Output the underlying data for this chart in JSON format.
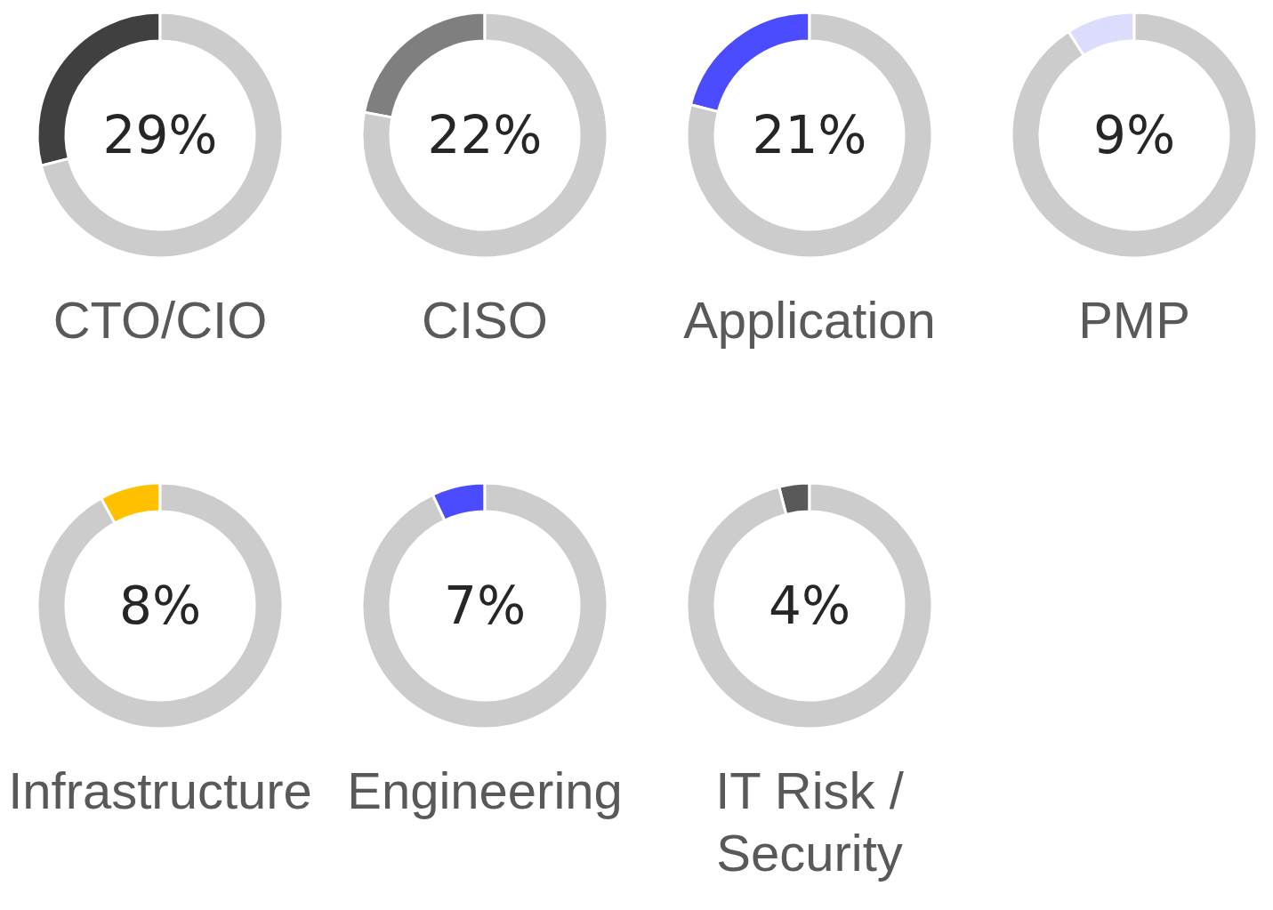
{
  "chart_data": [
    {
      "type": "donut",
      "title": "CTO/CIO",
      "categories": [
        null,
        null
      ],
      "values": [
        29,
        71
      ],
      "colors": [
        "#404040",
        "#cccccc"
      ],
      "annotations": [
        "29%"
      ]
    },
    {
      "type": "donut",
      "title": "CISO",
      "categories": [
        null,
        null
      ],
      "values": [
        22,
        78
      ],
      "colors": [
        "#7f7f7f",
        "#cccccc"
      ],
      "annotations": [
        "22%"
      ]
    },
    {
      "type": "donut",
      "title": "Application",
      "categories": [
        null,
        null
      ],
      "values": [
        21,
        79
      ],
      "colors": [
        "#4b4bff",
        "#cccccc"
      ],
      "annotations": [
        "21%"
      ]
    },
    {
      "type": "donut",
      "title": "PMP",
      "categories": [
        null,
        null
      ],
      "values": [
        9,
        91
      ],
      "colors": [
        "#dcdcfc",
        "#cccccc"
      ],
      "annotations": [
        "9%"
      ]
    },
    {
      "type": "donut",
      "title": "Infrastructure",
      "categories": [
        null,
        null
      ],
      "values": [
        8,
        92
      ],
      "colors": [
        "#ffc000",
        "#cccccc"
      ],
      "annotations": [
        "8%"
      ]
    },
    {
      "type": "donut",
      "title": "Engineering",
      "categories": [
        null,
        null
      ],
      "values": [
        7,
        93
      ],
      "colors": [
        "#4b4bff",
        "#cccccc"
      ],
      "annotations": [
        "7%"
      ]
    },
    {
      "type": "donut",
      "title": "IT Risk / Security",
      "categories": [
        null,
        null
      ],
      "values": [
        4,
        96
      ],
      "colors": [
        "#595959",
        "#cccccc"
      ],
      "annotations": [
        "4%"
      ]
    }
  ]
}
